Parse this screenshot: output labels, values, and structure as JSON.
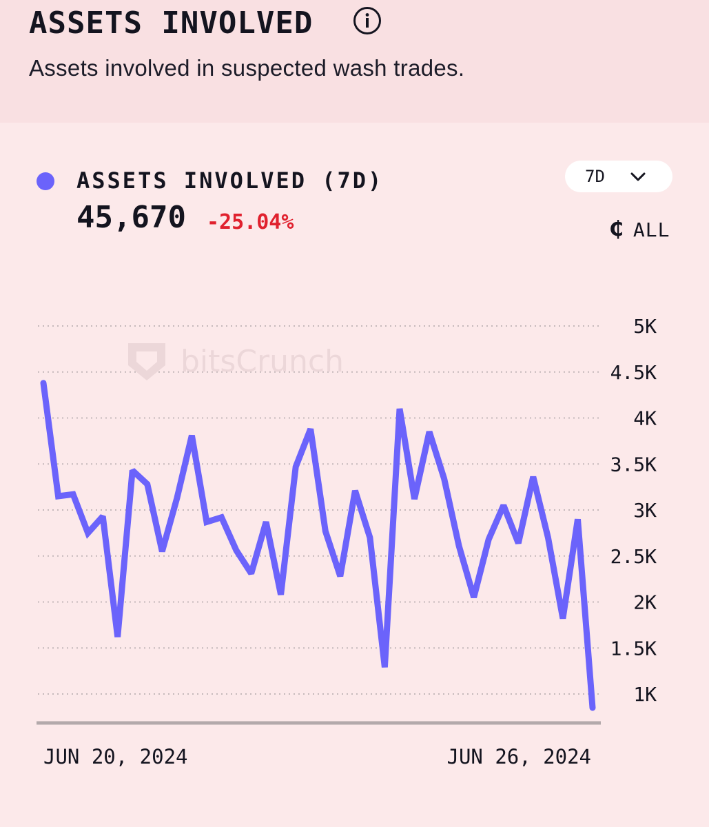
{
  "header": {
    "title": "ASSETS INVOLVED",
    "subtitle": "Assets involved in suspected wash trades.",
    "info_icon": "info-circle-icon"
  },
  "metric": {
    "label": "ASSETS INVOLVED (7D)",
    "value": "45,670",
    "change": "-25.04%",
    "change_color": "#e0212e",
    "series_color": "#6b63fb"
  },
  "controls": {
    "range_value": "7D",
    "range_icon": "chevron-down-icon",
    "chain_icon": "coin-icon",
    "chain_glyph": "₵",
    "chain_label": "ALL"
  },
  "watermark": {
    "text": "bitsCrunch",
    "icon": "bitscrunch-logo-icon"
  },
  "chart_data": {
    "type": "line",
    "title": "",
    "xlabel": "",
    "ylabel": "",
    "x_tick_labels": [
      "JUN 20, 2024",
      "JUN 26, 2024"
    ],
    "y_ticks": [
      1000,
      1500,
      2000,
      2500,
      3000,
      3500,
      4000,
      4500,
      5000
    ],
    "y_tick_labels": [
      "1K",
      "1.5K",
      "2K",
      "2.5K",
      "3K",
      "3.5K",
      "4K",
      "4.5K",
      "5K"
    ],
    "ylim": [
      680,
      5000
    ],
    "grid": "horizontal dotted",
    "series": [
      {
        "values": [
          4380,
          3150,
          3170,
          2750,
          2930,
          1620,
          3430,
          3280,
          2550,
          3130,
          3810,
          2870,
          2920,
          2560,
          2310,
          2870,
          2080,
          3470,
          3880,
          2770,
          2280,
          3210,
          2700,
          1290,
          4100,
          3120,
          3850,
          3340,
          2610,
          2050,
          2680,
          3050,
          2640,
          3360,
          2700,
          1820,
          2900,
          850
        ]
      }
    ]
  }
}
